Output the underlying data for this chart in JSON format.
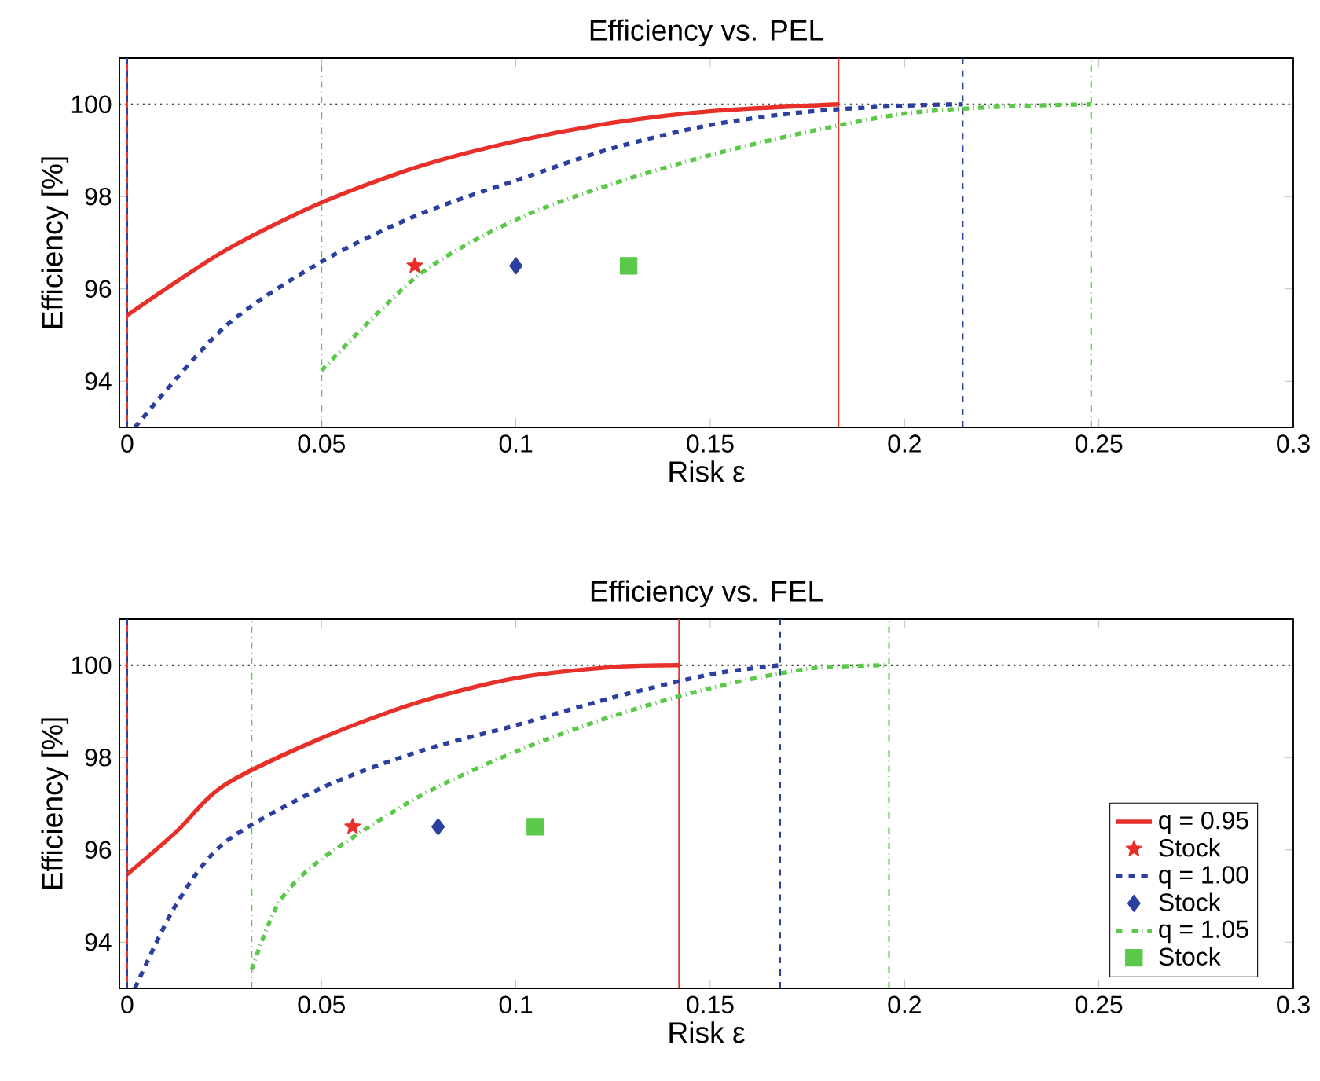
{
  "chart_data": [
    {
      "type": "line",
      "title": "Efficiency  vs.  PEL",
      "xlabel": "Risk ε",
      "ylabel": "Efficiency  [%]",
      "xlim": [
        -0.002,
        0.3
      ],
      "ylim": [
        93,
        101
      ],
      "xticks": [
        0,
        0.05,
        0.1,
        0.15,
        0.2,
        0.25,
        0.3
      ],
      "yticks": [
        94,
        96,
        98,
        100
      ],
      "series": [
        {
          "type": "line",
          "color": "#e8302a",
          "line_style": "solid",
          "marker": "none",
          "x": [
            0,
            0.025,
            0.05,
            0.075,
            0.1,
            0.125,
            0.15,
            0.183
          ],
          "values": [
            95.43,
            96.82,
            97.87,
            98.65,
            99.2,
            99.6,
            99.85,
            100
          ]
        },
        {
          "type": "scatter",
          "color": "#e8302a",
          "marker": "star",
          "x": [
            0.074
          ],
          "values": [
            96.5
          ]
        },
        {
          "type": "line",
          "color": "#2a3f9e",
          "line_style": "dashed",
          "marker": "none",
          "x": [
            0.002,
            0.025,
            0.05,
            0.075,
            0.1,
            0.125,
            0.15,
            0.175,
            0.2,
            0.215
          ],
          "values": [
            93.0,
            95.17,
            96.59,
            97.61,
            98.35,
            99.05,
            99.55,
            99.84,
            99.97,
            100
          ]
        },
        {
          "type": "scatter",
          "color": "#2a3f9e",
          "marker": "diamond",
          "x": [
            0.1
          ],
          "values": [
            96.5
          ]
        },
        {
          "type": "line",
          "color": "#5bc84a",
          "line_style": "dashdot",
          "marker": "none",
          "x": [
            0.05,
            0.075,
            0.1,
            0.125,
            0.15,
            0.175,
            0.2,
            0.225,
            0.248
          ],
          "values": [
            94.23,
            96.3,
            97.5,
            98.28,
            98.9,
            99.4,
            99.8,
            99.95,
            100
          ]
        },
        {
          "type": "scatter",
          "color": "#5bc84a",
          "marker": "square",
          "x": [
            0.129
          ],
          "values": [
            96.5
          ]
        }
      ],
      "ref_lines": [
        {
          "axis": "y",
          "value": 100,
          "color": "#000000",
          "line_style": "dotted"
        },
        {
          "axis": "x",
          "value": 0,
          "color": "#e8302a",
          "line_style": "solid"
        },
        {
          "axis": "x",
          "value": 0,
          "color": "#2a3f9e",
          "line_style": "dashed"
        },
        {
          "axis": "x",
          "value": 0.183,
          "color": "#e8302a",
          "line_style": "solid"
        },
        {
          "axis": "x",
          "value": 0.215,
          "color": "#2a3f9e",
          "line_style": "dashed"
        },
        {
          "axis": "x",
          "value": 0.05,
          "color": "#5bc84a",
          "line_style": "dashdot"
        },
        {
          "axis": "x",
          "value": 0.248,
          "color": "#5bc84a",
          "line_style": "dashdot"
        }
      ]
    },
    {
      "type": "line",
      "title": "Efficiency  vs.  FEL",
      "xlabel": "Risk ε",
      "ylabel": "Efficiency  [%]",
      "xlim": [
        -0.002,
        0.3
      ],
      "ylim": [
        93,
        101
      ],
      "xticks": [
        0,
        0.05,
        0.1,
        0.15,
        0.2,
        0.25,
        0.3
      ],
      "yticks": [
        94,
        96,
        98,
        100
      ],
      "legend": "bottom right",
      "series": [
        {
          "type": "line",
          "name": "q = 0.95",
          "color": "#e8302a",
          "line_style": "solid",
          "marker": "none",
          "x": [
            0,
            0.0125,
            0.025,
            0.05,
            0.075,
            0.1,
            0.125,
            0.142
          ],
          "values": [
            95.47,
            96.38,
            97.4,
            98.42,
            99.2,
            99.72,
            99.96,
            100
          ]
        },
        {
          "type": "scatter",
          "name": "Stock",
          "color": "#e8302a",
          "marker": "star",
          "x": [
            0.058
          ],
          "values": [
            96.5
          ]
        },
        {
          "type": "line",
          "name": "q = 1.00",
          "color": "#2a3f9e",
          "line_style": "dashed",
          "marker": "none",
          "x": [
            0.002,
            0.0125,
            0.025,
            0.05,
            0.075,
            0.1,
            0.125,
            0.15,
            0.168
          ],
          "values": [
            93.0,
            94.8,
            96.15,
            97.34,
            98.13,
            98.7,
            99.3,
            99.8,
            100
          ]
        },
        {
          "type": "scatter",
          "name": "Stock",
          "color": "#2a3f9e",
          "marker": "diamond",
          "x": [
            0.08
          ],
          "values": [
            96.5
          ]
        },
        {
          "type": "line",
          "name": "q = 1.05",
          "color": "#5bc84a",
          "line_style": "dashdot",
          "marker": "none",
          "x": [
            0.032,
            0.039,
            0.05,
            0.075,
            0.1,
            0.125,
            0.15,
            0.175,
            0.196
          ],
          "values": [
            93.4,
            94.85,
            95.8,
            97.15,
            98.13,
            98.9,
            99.5,
            99.92,
            100
          ]
        },
        {
          "type": "scatter",
          "name": "Stock",
          "color": "#5bc84a",
          "marker": "square",
          "x": [
            0.105
          ],
          "values": [
            96.5
          ]
        }
      ],
      "ref_lines": [
        {
          "axis": "y",
          "value": 100,
          "color": "#000000",
          "line_style": "dotted"
        },
        {
          "axis": "x",
          "value": 0,
          "color": "#e8302a",
          "line_style": "solid"
        },
        {
          "axis": "x",
          "value": 0,
          "color": "#2a3f9e",
          "line_style": "dashed"
        },
        {
          "axis": "x",
          "value": 0.142,
          "color": "#e8302a",
          "line_style": "solid"
        },
        {
          "axis": "x",
          "value": 0.168,
          "color": "#2a3f9e",
          "line_style": "dashed"
        },
        {
          "axis": "x",
          "value": 0.032,
          "color": "#5bc84a",
          "line_style": "dashdot"
        },
        {
          "axis": "x",
          "value": 0.196,
          "color": "#5bc84a",
          "line_style": "dashdot"
        }
      ]
    }
  ]
}
